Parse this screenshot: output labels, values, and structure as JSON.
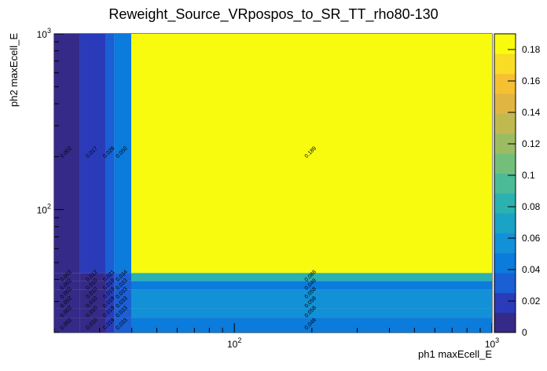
{
  "chart_data": {
    "type": "heatmap",
    "title": "Reweight_Source_VRpospos_to_SR_TT_rho80-130",
    "xlabel": "ph1 maxEcell_E",
    "ylabel": "ph2 maxEcell_E",
    "xscale": "log",
    "yscale": "log",
    "xlim": [
      20,
      1000
    ],
    "ylim": [
      20,
      1000
    ],
    "x_tick_labels": [
      {
        "value": 100,
        "base": "10",
        "exp": "2"
      },
      {
        "value": 1000,
        "base": "10",
        "exp": "3"
      }
    ],
    "y_tick_labels": [
      {
        "value": 100,
        "base": "10",
        "exp": "2"
      },
      {
        "value": 1000,
        "base": "10",
        "exp": "3"
      }
    ],
    "zlim": [
      0,
      0.19
    ],
    "colorbar_ticks": [
      "0",
      "0.02",
      "0.04",
      "0.06",
      "0.08",
      "0.1",
      "0.12",
      "0.14",
      "0.16",
      "0.18"
    ],
    "palette": [
      "#352a87",
      "#2a3bb9",
      "#1a5fd4",
      "#0b7bdc",
      "#1391d6",
      "#1aa3c5",
      "#2bb1b0",
      "#4bbb97",
      "#74be7c",
      "#9cbc63",
      "#c0b94f",
      "#e0b542",
      "#f5c133",
      "#f8dc25",
      "#f9fb0e"
    ],
    "cells": [
      {
        "x": [
          20,
          25.2
        ],
        "y": [
          43.6,
          1000
        ],
        "value": 0.002,
        "text": "0.002"
      },
      {
        "x": [
          25.2,
          31.7
        ],
        "y": [
          43.6,
          1000
        ],
        "value": 0.017,
        "text": "0.017"
      },
      {
        "x": [
          31.7,
          34.2
        ],
        "y": [
          43.6,
          1000
        ],
        "value": 0.028,
        "text": "0.028"
      },
      {
        "x": [
          34.2,
          39.8
        ],
        "y": [
          43.6,
          1000
        ],
        "value": 0.05,
        "text": "0.050"
      },
      {
        "x": [
          39.8,
          1000
        ],
        "y": [
          43.6,
          1000
        ],
        "value": 0.189,
        "text": "0.189"
      },
      {
        "x": [
          20,
          25.2
        ],
        "y": [
          39.2,
          43.6
        ],
        "value": 0.002,
        "text": "0.002"
      },
      {
        "x": [
          25.2,
          31.7
        ],
        "y": [
          39.2,
          43.6
        ],
        "value": 0.012,
        "text": "0.012"
      },
      {
        "x": [
          31.7,
          34.2
        ],
        "y": [
          39.2,
          43.6
        ],
        "value": 0.021,
        "text": "0.021"
      },
      {
        "x": [
          34.2,
          39.8
        ],
        "y": [
          39.2,
          43.6
        ],
        "value": 0.034,
        "text": "0.034"
      },
      {
        "x": [
          39.8,
          1000
        ],
        "y": [
          39.2,
          43.6
        ],
        "value": 0.088,
        "text": "0.088"
      },
      {
        "x": [
          20,
          25.2
        ],
        "y": [
          35.0,
          39.2
        ],
        "value": 0.002,
        "text": "0.002"
      },
      {
        "x": [
          25.2,
          31.7
        ],
        "y": [
          35.0,
          39.2
        ],
        "value": 0.01,
        "text": "0.010"
      },
      {
        "x": [
          31.7,
          34.2
        ],
        "y": [
          35.0,
          39.2
        ],
        "value": 0.019,
        "text": "0.019"
      },
      {
        "x": [
          34.2,
          39.8
        ],
        "y": [
          35.0,
          39.2
        ],
        "value": 0.033,
        "text": "0.033"
      },
      {
        "x": [
          39.8,
          1000
        ],
        "y": [
          35.0,
          39.2
        ],
        "value": 0.049,
        "text": "0.049"
      },
      {
        "x": [
          20,
          25.2
        ],
        "y": [
          31.3,
          35.0
        ],
        "value": 0.002,
        "text": "0.002"
      },
      {
        "x": [
          25.2,
          31.7
        ],
        "y": [
          31.3,
          35.0
        ],
        "value": 0.01,
        "text": "0.010"
      },
      {
        "x": [
          31.7,
          34.2
        ],
        "y": [
          31.3,
          35.0
        ],
        "value": 0.019,
        "text": "0.019"
      },
      {
        "x": [
          34.2,
          39.8
        ],
        "y": [
          31.3,
          35.0
        ],
        "value": 0.033,
        "text": "0.033"
      },
      {
        "x": [
          39.8,
          1000
        ],
        "y": [
          31.3,
          35.0
        ],
        "value": 0.058,
        "text": "0.058"
      },
      {
        "x": [
          20,
          25.2
        ],
        "y": [
          27.5,
          31.3
        ],
        "value": 0.002,
        "text": "0.002"
      },
      {
        "x": [
          25.2,
          31.7
        ],
        "y": [
          27.5,
          31.3
        ],
        "value": 0.01,
        "text": "0.010"
      },
      {
        "x": [
          31.7,
          34.2
        ],
        "y": [
          27.5,
          31.3
        ],
        "value": 0.019,
        "text": "0.019"
      },
      {
        "x": [
          34.2,
          39.8
        ],
        "y": [
          27.5,
          31.3
        ],
        "value": 0.033,
        "text": "0.033"
      },
      {
        "x": [
          39.8,
          1000
        ],
        "y": [
          27.5,
          31.3
        ],
        "value": 0.058,
        "text": "0.058"
      },
      {
        "x": [
          20,
          25.2
        ],
        "y": [
          24.3,
          27.5
        ],
        "value": 0.002,
        "text": "0.002"
      },
      {
        "x": [
          25.2,
          31.7
        ],
        "y": [
          24.3,
          27.5
        ],
        "value": 0.01,
        "text": "0.010"
      },
      {
        "x": [
          31.7,
          34.2
        ],
        "y": [
          24.3,
          27.5
        ],
        "value": 0.019,
        "text": "0.019"
      },
      {
        "x": [
          34.2,
          39.8
        ],
        "y": [
          24.3,
          27.5
        ],
        "value": 0.033,
        "text": "0.033"
      },
      {
        "x": [
          39.8,
          1000
        ],
        "y": [
          24.3,
          27.5
        ],
        "value": 0.058,
        "text": "0.058"
      },
      {
        "x": [
          20,
          25.2
        ],
        "y": [
          20,
          24.3
        ],
        "value": 0.002,
        "text": "0.002"
      },
      {
        "x": [
          25.2,
          31.7
        ],
        "y": [
          20,
          24.3
        ],
        "value": 0.01,
        "text": "0.010"
      },
      {
        "x": [
          31.7,
          34.2
        ],
        "y": [
          20,
          24.3
        ],
        "value": 0.019,
        "text": "0.019"
      },
      {
        "x": [
          34.2,
          39.8
        ],
        "y": [
          20,
          24.3
        ],
        "value": 0.033,
        "text": "0.033"
      },
      {
        "x": [
          39.8,
          1000
        ],
        "y": [
          20,
          24.3
        ],
        "value": 0.049,
        "text": "0.049"
      }
    ]
  }
}
